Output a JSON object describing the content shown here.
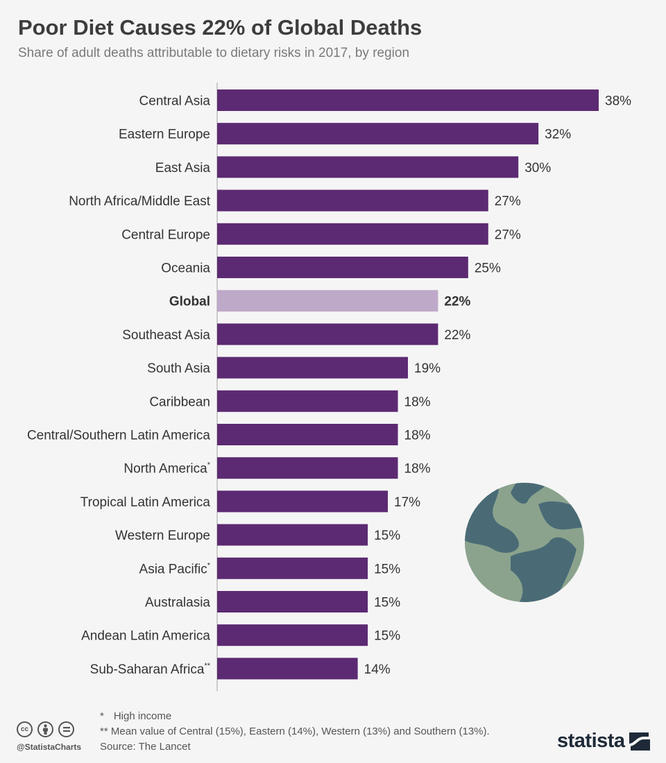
{
  "header": {
    "title": "Poor Diet Causes 22% of Global Deaths",
    "subtitle": "Share of adult deaths attributable to dietary risks in 2017, by region"
  },
  "chart_data": {
    "type": "bar",
    "orientation": "horizontal",
    "categories": [
      "Central Asia",
      "Eastern Europe",
      "East Asia",
      "North Africa/Middle East",
      "Central Europe",
      "Oceania",
      "Global",
      "Southeast  Asia",
      "South Asia",
      "Caribbean",
      "Central/Southern Latin America",
      "North America",
      "Tropical Latin America",
      "Western Europe",
      "Asia Pacific",
      "Australasia",
      "Andean Latin America",
      "Sub-Saharan Africa"
    ],
    "superscripts": [
      "",
      "",
      "",
      "",
      "",
      "",
      "",
      "",
      "",
      "",
      "",
      "*",
      "",
      "",
      "*",
      "",
      "",
      "**"
    ],
    "values": [
      38,
      32,
      30,
      27,
      27,
      25,
      22,
      22,
      19,
      18,
      18,
      18,
      17,
      15,
      15,
      15,
      15,
      14
    ],
    "value_labels": [
      "38%",
      "32%",
      "30%",
      "27%",
      "27%",
      "25%",
      "22%",
      "22%",
      "19%",
      "18%",
      "18%",
      "18%",
      "17%",
      "15%",
      "15%",
      "15%",
      "15%",
      "14%"
    ],
    "highlight": "Global",
    "colors": {
      "bar": "#5c2a72",
      "highlight": "#bfa9c9",
      "axis": "#cccccc"
    },
    "xlim": [
      0,
      38
    ],
    "grid": false
  },
  "footnotes": {
    "star_symbol": "*",
    "star_text": "High income",
    "double_star_symbol": "**",
    "double_star_text": "Mean value of Central (15%), Eastern (14%), Western (13%) and Southern (13%).",
    "source": "Source: The Lancet"
  },
  "footer": {
    "handle": "@StatistaCharts",
    "brand": "statista",
    "cc_icons": [
      "cc",
      "by",
      "nd"
    ],
    "brand_color": "#1e2a38"
  },
  "decoration": {
    "icon": "globe-icon"
  }
}
